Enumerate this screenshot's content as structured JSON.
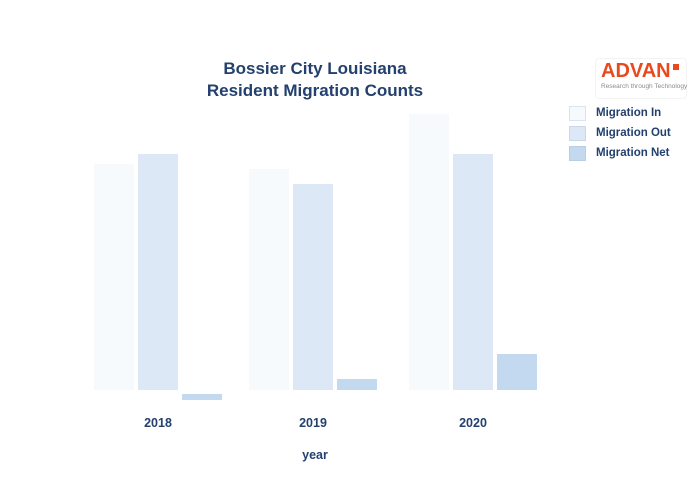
{
  "theme": {
    "background": "#ffffff",
    "text_color": "#23406f",
    "bar_border": "#ffffff"
  },
  "title": {
    "line1": "Bossier City Louisiana",
    "line2": "Resident Migration Counts"
  },
  "logo": {
    "name": "ADVAN",
    "tagline": "Research through Technology",
    "brand_color": "#e8491f",
    "tagline_color": "#8c8c8c"
  },
  "chart_data": {
    "type": "bar",
    "title": "Bossier City Louisiana Resident Migration Counts",
    "categories": [
      "2018",
      "2019",
      "2020"
    ],
    "series": [
      {
        "name": "Migration In",
        "color": "#f7fafd",
        "values": [
          2300,
          2250,
          2800
        ]
      },
      {
        "name": "Migration Out",
        "color": "#dce8f5",
        "values": [
          2400,
          2100,
          2400
        ]
      },
      {
        "name": "Migration Net",
        "color": "#c3d9ef",
        "values": [
          -100,
          150,
          400
        ]
      }
    ],
    "xlabel": "year",
    "ylabel": "",
    "y_axis": {
      "visible": false,
      "labels": []
    },
    "grid": false,
    "legend_position": "top-right",
    "values_note": "y-axis is unlabeled in the chart; values are estimates proportional to bar heights, net = in - out"
  }
}
